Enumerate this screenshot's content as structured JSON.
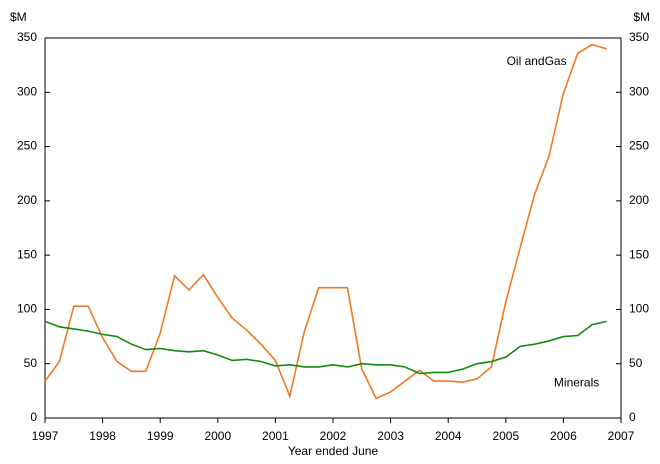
{
  "chart_data": {
    "type": "line",
    "y_unit": "$M",
    "y2_unit": "$M",
    "x_label": "Year ended June",
    "x": [
      1997,
      1997.25,
      1997.5,
      1997.75,
      1998,
      1998.25,
      1998.5,
      1998.75,
      1999,
      1999.25,
      1999.5,
      1999.75,
      2000,
      2000.25,
      2000.5,
      2000.75,
      2001,
      2001.25,
      2001.5,
      2001.75,
      2002,
      2002.25,
      2002.5,
      2002.75,
      2003,
      2003.25,
      2003.5,
      2003.75,
      2004,
      2004.25,
      2004.5,
      2004.75,
      2005,
      2005.25,
      2005.5,
      2005.75,
      2006,
      2006.25,
      2006.5,
      2006.75
    ],
    "series": [
      {
        "name": "Oil andGas",
        "color": "#f07820",
        "values": [
          34,
          52,
          103,
          103,
          74,
          52,
          43,
          43,
          78,
          131,
          118,
          132,
          111,
          92,
          81,
          68,
          53,
          20,
          79,
          120,
          120,
          120,
          45,
          18,
          24,
          34,
          44,
          34,
          34,
          33,
          36,
          47,
          107,
          157,
          206,
          241,
          299,
          336,
          344,
          340
        ]
      },
      {
        "name": "Minerals",
        "color": "#138a13",
        "values": [
          89,
          84,
          82,
          80,
          77,
          75,
          68,
          63,
          64,
          62,
          61,
          62,
          58,
          53,
          54,
          52,
          48,
          49,
          47,
          47,
          49,
          47,
          50,
          49,
          49,
          47,
          41,
          42,
          42,
          45,
          50,
          52,
          56,
          66,
          68,
          71,
          75,
          76,
          86,
          89
        ]
      }
    ],
    "xlim": [
      1997,
      2007
    ],
    "xticks": [
      1997,
      1998,
      1999,
      2000,
      2001,
      2002,
      2003,
      2004,
      2005,
      2006,
      2007
    ],
    "ylim": [
      0,
      350
    ],
    "yticks": [
      0,
      50,
      100,
      150,
      200,
      250,
      300,
      350
    ],
    "y2lim": [
      0,
      350
    ],
    "y2ticks": [
      0,
      50,
      100,
      150,
      200,
      250,
      300,
      350
    ],
    "grid": false
  }
}
